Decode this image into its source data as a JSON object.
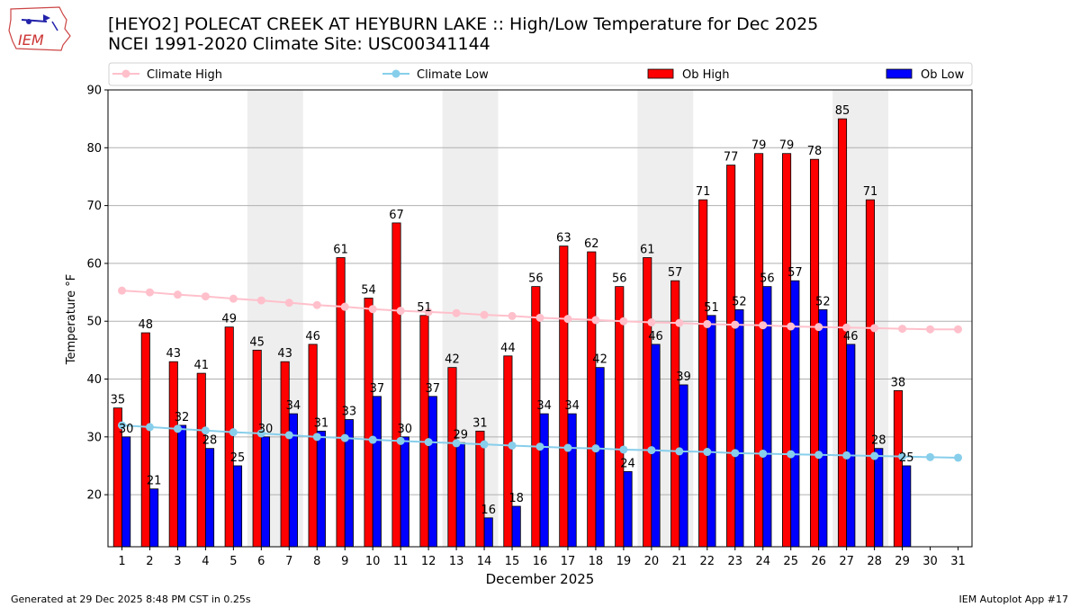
{
  "header": {
    "title_line1": "[HEYO2] POLECAT CREEK  AT HEYBURN LAKE :: High/Low Temperature for Dec 2025",
    "title_line2": "NCEI 1991-2020 Climate Site: USC00341144",
    "logo_text": "IEM"
  },
  "footer": {
    "generated": "Generated at 29 Dec 2025 8:48 PM CST in 0.25s",
    "app": "IEM Autoplot App #17"
  },
  "colors": {
    "climate_high": "#ffc0cb",
    "climate_low": "#87ceeb",
    "ob_high": "#ff0000",
    "ob_low": "#0000ff",
    "weekend_shade": "#eeeeee",
    "grid": "#b0b0b0"
  },
  "chart_data": {
    "type": "bar",
    "xlabel": "December 2025",
    "ylabel": "Temperature °F",
    "ylim": [
      11,
      90
    ],
    "yticks": [
      20,
      30,
      40,
      50,
      60,
      70,
      80,
      90
    ],
    "grid": "horizontal",
    "legend_placement": "top",
    "categories": [
      1,
      2,
      3,
      4,
      5,
      6,
      7,
      8,
      9,
      10,
      11,
      12,
      13,
      14,
      15,
      16,
      17,
      18,
      19,
      20,
      21,
      22,
      23,
      24,
      25,
      26,
      27,
      28,
      29,
      30,
      31
    ],
    "shaded_days": [
      [
        6,
        7
      ],
      [
        13,
        14
      ],
      [
        20,
        21
      ],
      [
        27,
        28
      ]
    ],
    "series": [
      {
        "name": "Climate High",
        "kind": "line",
        "values": [
          55.3,
          55.0,
          54.6,
          54.3,
          53.9,
          53.6,
          53.2,
          52.8,
          52.5,
          52.1,
          51.8,
          51.6,
          51.4,
          51.1,
          50.9,
          50.6,
          50.4,
          50.2,
          50.0,
          49.8,
          49.7,
          49.5,
          49.4,
          49.3,
          49.1,
          49.0,
          48.9,
          48.8,
          48.7,
          48.6,
          48.6
        ]
      },
      {
        "name": "Climate Low",
        "kind": "line",
        "values": [
          32.0,
          31.7,
          31.4,
          31.1,
          30.8,
          30.6,
          30.3,
          30.0,
          29.8,
          29.5,
          29.3,
          29.1,
          28.9,
          28.7,
          28.5,
          28.3,
          28.1,
          28.0,
          27.8,
          27.7,
          27.5,
          27.4,
          27.2,
          27.1,
          27.0,
          26.9,
          26.8,
          26.7,
          26.6,
          26.5,
          26.4
        ]
      },
      {
        "name": "Ob High",
        "kind": "bar",
        "values": [
          35,
          48,
          43,
          41,
          49,
          45,
          43,
          46,
          61,
          54,
          67,
          51,
          42,
          31,
          44,
          56,
          63,
          62,
          56,
          61,
          57,
          71,
          77,
          79,
          79,
          78,
          85,
          71,
          38,
          null,
          null
        ]
      },
      {
        "name": "Ob Low",
        "kind": "bar",
        "values": [
          30,
          21,
          32,
          28,
          25,
          30,
          34,
          31,
          33,
          37,
          30,
          37,
          29,
          16,
          18,
          34,
          34,
          42,
          24,
          46,
          39,
          51,
          52,
          56,
          57,
          52,
          46,
          28,
          25,
          null,
          null
        ]
      }
    ]
  }
}
